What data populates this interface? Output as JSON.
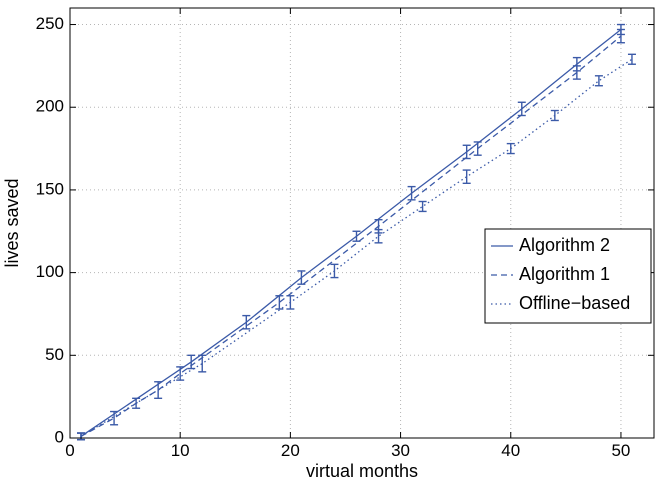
{
  "chart_data": {
    "type": "line",
    "xlabel": "virtual months",
    "ylabel": "lives saved",
    "xlim": [
      0,
      53
    ],
    "ylim": [
      0,
      260
    ],
    "x_ticks": [
      0,
      10,
      20,
      30,
      40,
      50
    ],
    "y_ticks": [
      0,
      50,
      100,
      150,
      200,
      250
    ],
    "grid": true,
    "legend_position": "right",
    "series": [
      {
        "name": "Algorithm 2",
        "style": "solid",
        "color": "#3b5aa8",
        "points": [
          {
            "x": 1,
            "y": 1,
            "err": 2
          },
          {
            "x": 11,
            "y": 46,
            "err": 4
          },
          {
            "x": 16,
            "y": 70,
            "err": 4
          },
          {
            "x": 21,
            "y": 97,
            "err": 4
          },
          {
            "x": 26,
            "y": 122,
            "err": 3
          },
          {
            "x": 31,
            "y": 148,
            "err": 4
          },
          {
            "x": 36,
            "y": 173,
            "err": 4
          },
          {
            "x": 41,
            "y": 199,
            "err": 4
          },
          {
            "x": 46,
            "y": 226,
            "err": 4
          },
          {
            "x": 50,
            "y": 247,
            "err": 3
          }
        ]
      },
      {
        "name": "Algorithm 1",
        "style": "dashed",
        "color": "#3b5aa8",
        "points": [
          {
            "x": 1,
            "y": 1,
            "err": 2
          },
          {
            "x": 4,
            "y": 12,
            "err": 4
          },
          {
            "x": 6,
            "y": 21,
            "err": 3
          },
          {
            "x": 8,
            "y": 29,
            "err": 5
          },
          {
            "x": 10,
            "y": 39,
            "err": 4
          },
          {
            "x": 19,
            "y": 82,
            "err": 4
          },
          {
            "x": 28,
            "y": 128,
            "err": 4
          },
          {
            "x": 37,
            "y": 175,
            "err": 4
          },
          {
            "x": 46,
            "y": 221,
            "err": 4
          },
          {
            "x": 50,
            "y": 243,
            "err": 4
          }
        ]
      },
      {
        "name": "Offline−based",
        "style": "dotted",
        "color": "#3b5aa8",
        "points": [
          {
            "x": 1,
            "y": 1,
            "err": 2
          },
          {
            "x": 12,
            "y": 45,
            "err": 5
          },
          {
            "x": 20,
            "y": 82,
            "err": 4
          },
          {
            "x": 24,
            "y": 101,
            "err": 4
          },
          {
            "x": 28,
            "y": 122,
            "err": 4
          },
          {
            "x": 32,
            "y": 140,
            "err": 3
          },
          {
            "x": 36,
            "y": 158,
            "err": 4
          },
          {
            "x": 40,
            "y": 175,
            "err": 3
          },
          {
            "x": 44,
            "y": 195,
            "err": 3
          },
          {
            "x": 48,
            "y": 216,
            "err": 3
          },
          {
            "x": 51,
            "y": 229,
            "err": 3
          }
        ]
      }
    ]
  }
}
